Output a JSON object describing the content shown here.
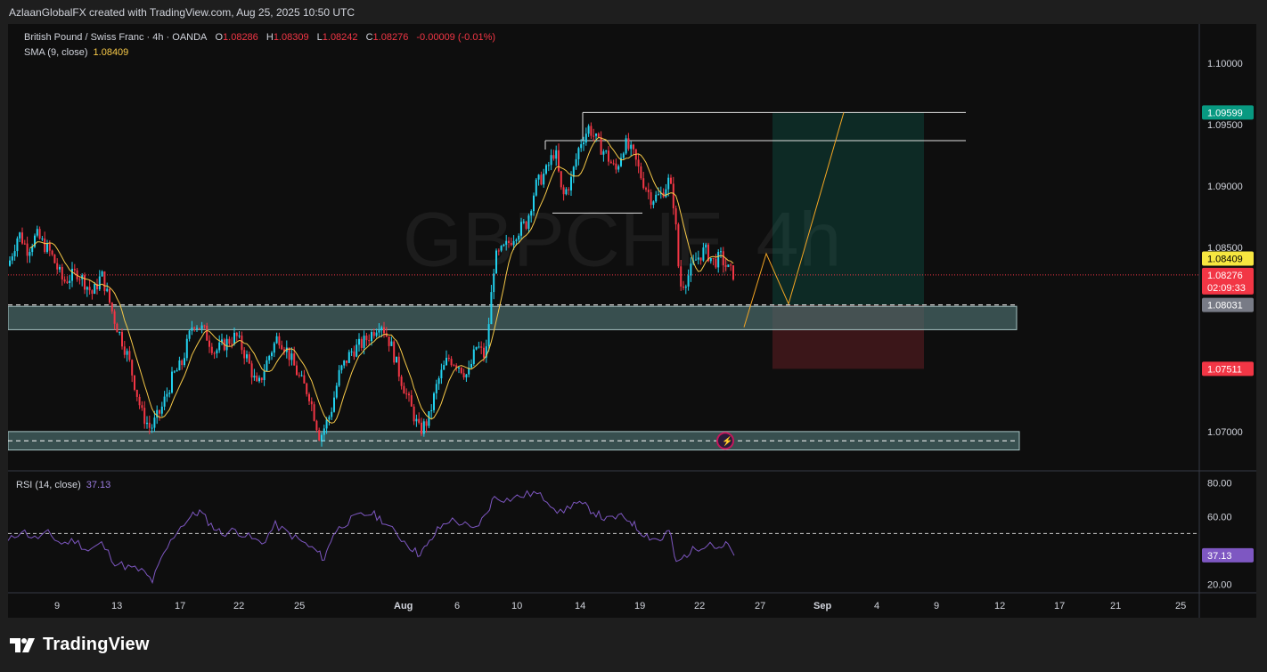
{
  "header": {
    "attribution": "AzlaanGlobalFX created with TradingView.com, Aug 25, 2025 10:50 UTC"
  },
  "legend": {
    "symbol": "British Pound / Swiss Franc · 4h · OANDA",
    "ohlc": [
      {
        "k": "O",
        "v": "1.08286"
      },
      {
        "k": "H",
        "v": "1.08309"
      },
      {
        "k": "L",
        "v": "1.08242"
      },
      {
        "k": "C",
        "v": "1.08276"
      }
    ],
    "change": "-0.00009 (-0.01%)",
    "sma_label": "SMA (9, close)",
    "sma_value": "1.08409",
    "rsi_label": "RSI (14, close)",
    "rsi_value": "37.13"
  },
  "watermark": "GBPCHF, 4h",
  "footer": {
    "brand": "TradingView"
  },
  "colors": {
    "up": "#22d1ee",
    "down": "#f23645",
    "sma": "#f7c948",
    "rsi": "#7e57c2",
    "target": "#089981",
    "stop": "#f23645",
    "zone": "#4a6b6b"
  },
  "chart_data": {
    "type": "candlestick",
    "symbol": "GBPCHF",
    "timeframe": "4h",
    "price_axis": {
      "range": [
        1.0668,
        1.1032
      ],
      "ticks": [
        "1.10000",
        "1.09500",
        "1.09000",
        "1.08500",
        "1.07000"
      ],
      "tick_values": [
        1.1,
        1.095,
        1.09,
        1.085,
        1.07
      ]
    },
    "price_labels": [
      {
        "text": "1.09599",
        "value": 1.09599,
        "bg": "#089981",
        "fg": "#ffffff"
      },
      {
        "text": "1.08409",
        "value": 1.08409,
        "bg": "#f7e740",
        "fg": "#000000"
      },
      {
        "text": "1.08276",
        "sub": "02:09:33",
        "value": 1.08276,
        "bg": "#f23645",
        "fg": "#ffffff"
      },
      {
        "text": "1.08031",
        "value": 1.08031,
        "bg": "#787b86",
        "fg": "#ffffff"
      },
      {
        "text": "1.07511",
        "value": 1.07511,
        "bg": "#f23645",
        "fg": "#ffffff"
      }
    ],
    "time_axis": [
      "9",
      "13",
      "17",
      "22",
      "25",
      "Aug",
      "6",
      "10",
      "14",
      "19",
      "22",
      "27",
      "Sep",
      "4",
      "9",
      "12",
      "17",
      "21",
      "25"
    ],
    "close_path": [
      [
        0,
        1.0835
      ],
      [
        12,
        1.0862
      ],
      [
        22,
        1.0848
      ],
      [
        32,
        1.086
      ],
      [
        48,
        1.0845
      ],
      [
        62,
        1.0822
      ],
      [
        78,
        1.083
      ],
      [
        95,
        1.0812
      ],
      [
        105,
        1.0828
      ],
      [
        120,
        1.079
      ],
      [
        135,
        1.076
      ],
      [
        150,
        1.0715
      ],
      [
        160,
        1.0702
      ],
      [
        172,
        1.0718
      ],
      [
        185,
        1.0745
      ],
      [
        195,
        1.0755
      ],
      [
        208,
        1.079
      ],
      [
        220,
        1.0782
      ],
      [
        232,
        1.0765
      ],
      [
        244,
        1.0772
      ],
      [
        256,
        1.0778
      ],
      [
        268,
        1.076
      ],
      [
        280,
        1.0735
      ],
      [
        292,
        1.076
      ],
      [
        303,
        1.0778
      ],
      [
        314,
        1.0765
      ],
      [
        326,
        1.0745
      ],
      [
        338,
        1.073
      ],
      [
        350,
        1.0695
      ],
      [
        362,
        1.0715
      ],
      [
        372,
        1.0748
      ],
      [
        385,
        1.0765
      ],
      [
        398,
        1.0772
      ],
      [
        408,
        1.078
      ],
      [
        418,
        1.079
      ],
      [
        430,
        1.077
      ],
      [
        440,
        1.0745
      ],
      [
        452,
        1.072
      ],
      [
        462,
        1.07
      ],
      [
        472,
        1.071
      ],
      [
        482,
        1.074
      ],
      [
        494,
        1.076
      ],
      [
        505,
        1.0755
      ],
      [
        516,
        1.0745
      ],
      [
        526,
        1.077
      ],
      [
        536,
        1.076
      ],
      [
        546,
        1.084
      ],
      [
        558,
        1.085
      ],
      [
        570,
        1.0862
      ],
      [
        582,
        1.087
      ],
      [
        592,
        1.09
      ],
      [
        604,
        1.0912
      ],
      [
        614,
        1.093
      ],
      [
        622,
        1.089
      ],
      [
        632,
        1.0905
      ],
      [
        642,
        1.0935
      ],
      [
        652,
        1.0948
      ],
      [
        662,
        1.0935
      ],
      [
        672,
        1.0925
      ],
      [
        682,
        1.0912
      ],
      [
        692,
        1.0935
      ],
      [
        702,
        1.0925
      ],
      [
        712,
        1.0905
      ],
      [
        722,
        1.089
      ],
      [
        732,
        1.0892
      ],
      [
        742,
        1.0905
      ],
      [
        748,
        1.0882
      ],
      [
        754,
        1.0818
      ],
      [
        762,
        1.0825
      ],
      [
        772,
        1.084
      ],
      [
        782,
        1.0848
      ],
      [
        792,
        1.0838
      ],
      [
        800,
        1.0842
      ],
      [
        808,
        1.0832
      ],
      [
        815,
        1.0828
      ]
    ],
    "sma": {
      "period": 9,
      "last": 1.08409
    },
    "levels": {
      "top_line_1": 1.09599,
      "top_line_2": 1.0937,
      "range_low": 1.0878,
      "current": 1.08276,
      "dashed_mid": 1.08031,
      "support_zone": [
        1.0783,
        1.0802
      ],
      "lower_zone": [
        1.0685,
        1.07
      ]
    },
    "position": {
      "entry": 1.08031,
      "target": 1.09599,
      "stop": 1.07511
    },
    "projection": [
      [
        826,
        1.0785
      ],
      [
        851,
        1.0845
      ],
      [
        876,
        1.0804
      ],
      [
        938,
        1.096
      ]
    ],
    "rsi": {
      "period": 14,
      "last": 37.13,
      "axis": {
        "range": [
          15,
          87
        ],
        "ticks": [
          "80.00",
          "60.00",
          "20.00"
        ],
        "tick_values": [
          80,
          60,
          20
        ]
      },
      "level_line": 50,
      "path": [
        [
          0,
          45
        ],
        [
          15,
          52
        ],
        [
          30,
          47
        ],
        [
          45,
          50
        ],
        [
          60,
          44
        ],
        [
          75,
          46
        ],
        [
          90,
          40
        ],
        [
          105,
          44
        ],
        [
          120,
          33
        ],
        [
          135,
          30
        ],
        [
          150,
          28
        ],
        [
          162,
          22
        ],
        [
          175,
          38
        ],
        [
          190,
          52
        ],
        [
          205,
          60
        ],
        [
          215,
          63
        ],
        [
          228,
          55
        ],
        [
          240,
          50
        ],
        [
          255,
          52
        ],
        [
          270,
          48
        ],
        [
          285,
          44
        ],
        [
          300,
          55
        ],
        [
          315,
          50
        ],
        [
          330,
          45
        ],
        [
          345,
          40
        ],
        [
          355,
          35
        ],
        [
          365,
          50
        ],
        [
          378,
          56
        ],
        [
          392,
          60
        ],
        [
          408,
          62
        ],
        [
          420,
          58
        ],
        [
          435,
          50
        ],
        [
          448,
          44
        ],
        [
          460,
          38
        ],
        [
          470,
          42
        ],
        [
          482,
          52
        ],
        [
          495,
          58
        ],
        [
          510,
          56
        ],
        [
          522,
          52
        ],
        [
          535,
          60
        ],
        [
          546,
          72
        ],
        [
          560,
          70
        ],
        [
          575,
          72
        ],
        [
          590,
          74
        ],
        [
          605,
          70
        ],
        [
          620,
          62
        ],
        [
          635,
          68
        ],
        [
          648,
          66
        ],
        [
          660,
          62
        ],
        [
          672,
          58
        ],
        [
          685,
          60
        ],
        [
          698,
          58
        ],
        [
          708,
          52
        ],
        [
          720,
          48
        ],
        [
          732,
          46
        ],
        [
          742,
          52
        ],
        [
          750,
          32
        ],
        [
          762,
          38
        ],
        [
          775,
          42
        ],
        [
          788,
          45
        ],
        [
          798,
          40
        ],
        [
          808,
          44
        ],
        [
          815,
          37
        ]
      ]
    }
  }
}
